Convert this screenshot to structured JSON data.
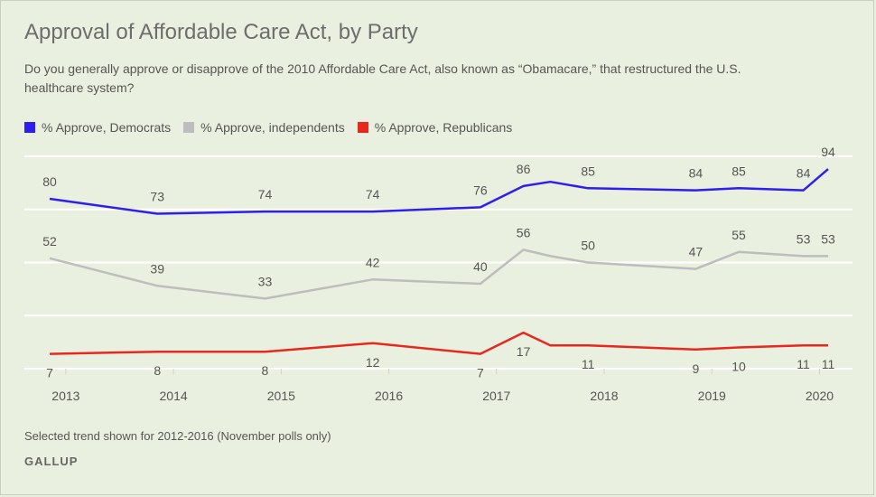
{
  "title": "Approval of Affordable Care Act, by Party",
  "subtitle": "Do you generally approve or disapprove of the 2010 Affordable Care Act, also known as “Obamacare,” that restructured the U.S. healthcare system?",
  "note": "Selected trend shown for 2012-2016 (November polls only)",
  "brand": "GALLUP",
  "chart_data": {
    "type": "line",
    "x_ticks": [
      "2013",
      "2014",
      "2015",
      "2016",
      "2017",
      "2018",
      "2019",
      "2020"
    ],
    "x": [
      2012.85,
      2013.85,
      2014.85,
      2015.85,
      2016.85,
      2017.25,
      2017.5,
      2017.85,
      2018.85,
      2019.25,
      2019.85,
      2020.08
    ],
    "ylim": [
      0,
      100
    ],
    "gridlines": [
      0,
      25,
      50,
      75,
      100
    ],
    "legend_position": "top-left",
    "series": [
      {
        "name": "% Approve, Democrats",
        "color": "#2e1ef0",
        "values": [
          80,
          73,
          74,
          74,
          76,
          86,
          88,
          85,
          84,
          85,
          84,
          94
        ],
        "labels": [
          "80",
          "73",
          "74",
          "74",
          "76",
          "86",
          null,
          "85",
          "84",
          "85",
          "84",
          "94"
        ]
      },
      {
        "name": "% Approve, independents",
        "color": "#bdbdbd",
        "values": [
          52,
          39,
          33,
          42,
          40,
          56,
          53,
          50,
          47,
          55,
          53,
          53
        ],
        "labels": [
          "52",
          "39",
          "33",
          "42",
          "40",
          "56",
          null,
          "50",
          "47",
          "55",
          "53",
          "53"
        ]
      },
      {
        "name": "% Approve, Republicans",
        "color": "#e8281e",
        "values": [
          7,
          8,
          8,
          12,
          7,
          17,
          11,
          11,
          9,
          10,
          11,
          11
        ],
        "labels": [
          "7",
          "8",
          "8",
          "12",
          "7",
          "17",
          null,
          "11",
          "9",
          "10",
          "11",
          "11"
        ]
      }
    ]
  }
}
